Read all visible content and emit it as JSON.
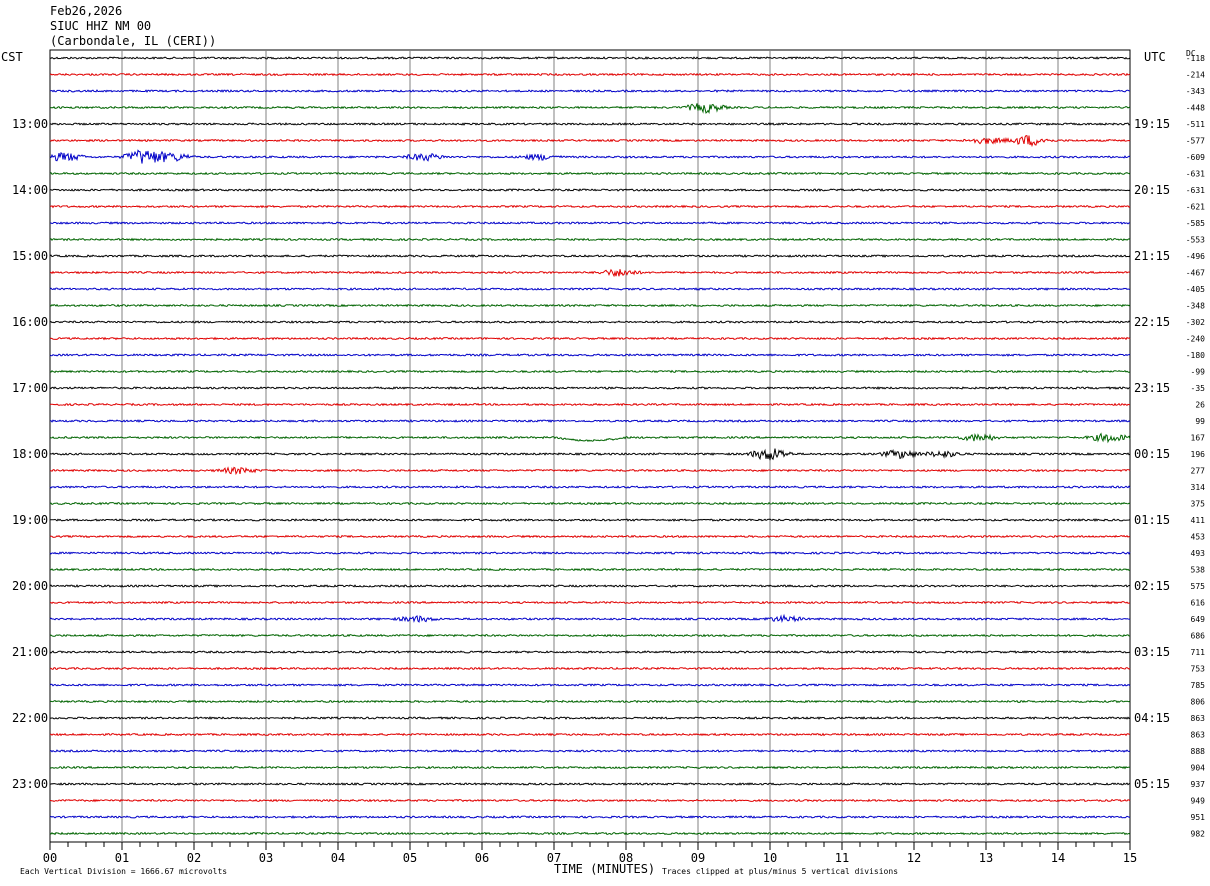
{
  "header": {
    "date": "Feb26,2026",
    "station": "SIUC HHZ NM 00",
    "location": "(Carbondale, IL (CERI))"
  },
  "labels": {
    "left_tz": "CST",
    "right_tz": "UTC",
    "dc_header": "DC"
  },
  "footer": {
    "xlabel": "TIME (MINUTES)",
    "scale_note": "Each Vertical Division = 1666.67 microvolts",
    "clip_note": "Traces clipped at plus/minus 5 vertical divisions"
  },
  "chart_data": {
    "type": "line",
    "title": "",
    "xlabel": "TIME (MINUTES)",
    "ylabel": "",
    "xlim": [
      0,
      15
    ],
    "x_ticks": [
      "00",
      "01",
      "02",
      "03",
      "04",
      "05",
      "06",
      "07",
      "08",
      "09",
      "10",
      "11",
      "12",
      "13",
      "14",
      "15"
    ],
    "grid": true,
    "trace_count": 48,
    "trace_colors": [
      "#000000",
      "#e00000",
      "#0000c8",
      "#006400"
    ],
    "cst_hour_labels": [
      {
        "trace": 4,
        "label": "13:00"
      },
      {
        "trace": 8,
        "label": "14:00"
      },
      {
        "trace": 12,
        "label": "15:00"
      },
      {
        "trace": 16,
        "label": "16:00"
      },
      {
        "trace": 20,
        "label": "17:00"
      },
      {
        "trace": 24,
        "label": "18:00"
      },
      {
        "trace": 28,
        "label": "19:00"
      },
      {
        "trace": 32,
        "label": "20:00"
      },
      {
        "trace": 36,
        "label": "21:00"
      },
      {
        "trace": 40,
        "label": "22:00"
      },
      {
        "trace": 44,
        "label": "23:00"
      }
    ],
    "utc_hour_labels": [
      {
        "trace": 4,
        "label": "19:15"
      },
      {
        "trace": 8,
        "label": "20:15"
      },
      {
        "trace": 12,
        "label": "21:15"
      },
      {
        "trace": 16,
        "label": "22:15"
      },
      {
        "trace": 20,
        "label": "23:15"
      },
      {
        "trace": 24,
        "label": "00:15"
      },
      {
        "trace": 28,
        "label": "01:15"
      },
      {
        "trace": 32,
        "label": "02:15"
      },
      {
        "trace": 36,
        "label": "03:15"
      },
      {
        "trace": 40,
        "label": "04:15"
      },
      {
        "trace": 44,
        "label": "05:15"
      }
    ],
    "dc_offsets": [
      "-118",
      "-214",
      "-343",
      "-448",
      "-511",
      "-577",
      "-609",
      "-631",
      "-631",
      "-621",
      "-585",
      "-553",
      "-496",
      "-467",
      "-405",
      "-348",
      "-302",
      "-240",
      "-180",
      "-99",
      "-35",
      "26",
      "99",
      "167",
      "196",
      "277",
      "314",
      "375",
      "411",
      "453",
      "493",
      "538",
      "575",
      "616",
      "649",
      "686",
      "711",
      "753",
      "785",
      "806",
      "863",
      "863",
      "888",
      "904",
      "937",
      "949",
      "951",
      "982"
    ],
    "events": [
      {
        "trace": 3,
        "minute": 9.1,
        "amp": 1.6
      },
      {
        "trace": 5,
        "minute": 13.6,
        "amp": 1.8
      },
      {
        "trace": 5,
        "minute": 13.0,
        "amp": 1.0
      },
      {
        "trace": 6,
        "minute": 0.2,
        "amp": 1.4
      },
      {
        "trace": 6,
        "minute": 1.3,
        "amp": 2.6
      },
      {
        "trace": 6,
        "minute": 1.7,
        "amp": 1.4
      },
      {
        "trace": 6,
        "minute": 5.2,
        "amp": 1.2
      },
      {
        "trace": 6,
        "minute": 6.8,
        "amp": 0.9
      },
      {
        "trace": 13,
        "minute": 7.9,
        "amp": 1.2
      },
      {
        "trace": 23,
        "minute": 12.9,
        "amp": 1.2
      },
      {
        "trace": 23,
        "minute": 14.7,
        "amp": 1.4
      },
      {
        "trace": 24,
        "minute": 10.0,
        "amp": 2.2
      },
      {
        "trace": 24,
        "minute": 11.8,
        "amp": 1.3
      },
      {
        "trace": 24,
        "minute": 12.4,
        "amp": 1.0
      },
      {
        "trace": 25,
        "minute": 2.6,
        "amp": 1.0
      },
      {
        "trace": 34,
        "minute": 5.1,
        "amp": 0.9
      },
      {
        "trace": 34,
        "minute": 10.2,
        "amp": 0.9
      }
    ]
  }
}
